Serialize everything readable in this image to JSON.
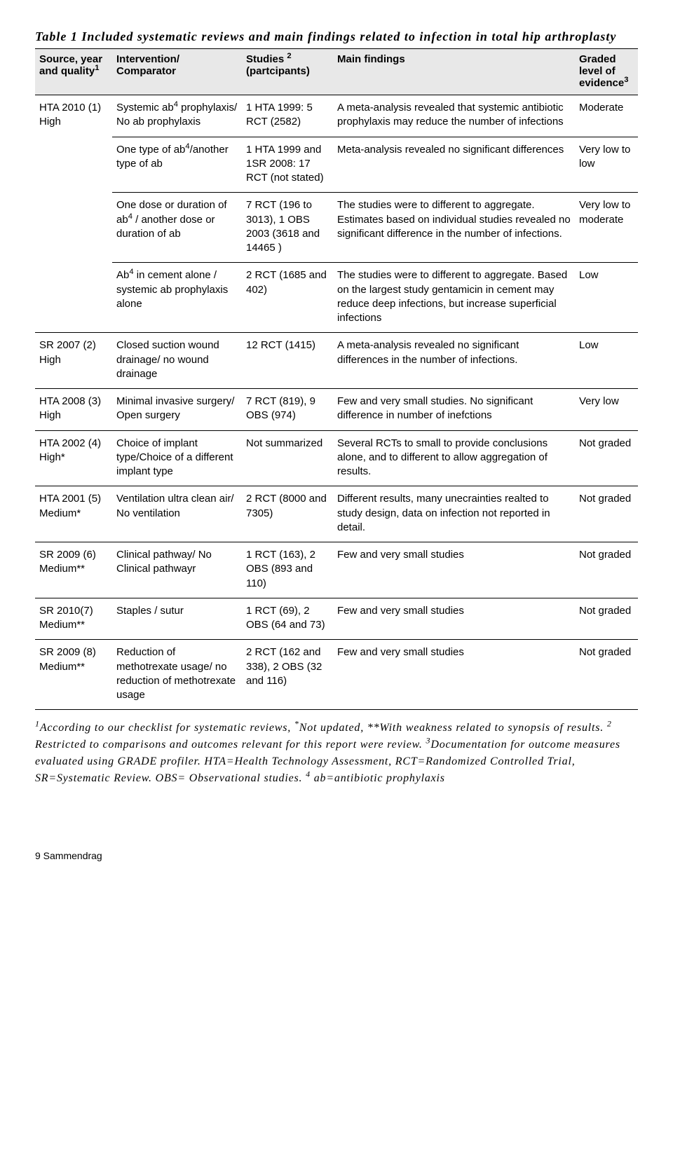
{
  "title": "Table 1 Included systematic reviews and main findings related to infection in total hip arthroplasty",
  "headers": {
    "source": "Source, year and quality",
    "intervention": "Intervention/ Comparator",
    "studies": "Studies",
    "studies_paren": "(partcipants)",
    "findings": "Main findings",
    "grade": "Graded level of evidence"
  },
  "rows": {
    "r1": {
      "source": "HTA 2010 (1) High",
      "intervention_a": "Systemic ab",
      "intervention_b": " prophylaxis/ No ab prophylaxis",
      "studies": "1 HTA 1999: 5 RCT (2582)",
      "findings": "A meta-analysis revealed that systemic antibiotic prophylaxis may reduce the number of infections",
      "grade": "Moderate"
    },
    "r2": {
      "intervention_a": "One type of ab",
      "intervention_b": "/another type of ab",
      "studies": "1 HTA 1999 and 1SR 2008: 17 RCT (not stated)",
      "findings": "Meta-analysis revealed no significant differences",
      "grade": "Very low to low"
    },
    "r3": {
      "intervention_a": "One dose or duration of ab",
      "intervention_b": " / another dose or duration of ab",
      "studies": "7 RCT (196 to 3013), 1 OBS 2003 (3618 and 14465 )",
      "findings": "The studies were to different to aggregate. Estimates based on individual studies revealed no significant difference in the number of infections.",
      "grade": "Very low to moderate"
    },
    "r4": {
      "intervention_a": "Ab",
      "intervention_b": " in cement alone / systemic ab prophylaxis alone",
      "studies": "2 RCT (1685 and 402)",
      "findings": "The studies were to different to aggregate. Based on the largest study gentamicin in cement may reduce deep infections, but increase superficial infections",
      "grade": "Low"
    },
    "r5": {
      "source": "SR 2007 (2) High",
      "intervention": "Closed suction wound drainage/ no wound drainage",
      "studies": "12 RCT (1415)",
      "findings": "A meta-analysis revealed no significant differences in the number of infections.",
      "grade": "Low"
    },
    "r6": {
      "source": "HTA 2008 (3) High",
      "intervention": "Minimal invasive surgery/ Open surgery",
      "studies": "7 RCT (819), 9 OBS  (974)",
      "findings": "Few and very small studies. No significant difference in number of inefctions",
      "grade": "Very low"
    },
    "r7": {
      "source": "HTA 2002 (4) High*",
      "intervention": "Choice of implant type/Choice of a different implant type",
      "studies": "Not summarized",
      "findings": "Several RCTs to small to provide conclusions alone, and to different to allow aggregation of results.",
      "grade": "Not graded"
    },
    "r8": {
      "source": "HTA 2001 (5) Medium*",
      "intervention": "Ventilation ultra clean air/ No ventilation",
      "studies": "2 RCT (8000 and 7305)",
      "findings": "Different results, many unecrainties realted to study design, data on infection not reported in detail.",
      "grade": "Not graded"
    },
    "r9": {
      "source": "SR 2009 (6) Medium**",
      "intervention": "Clinical pathway/ No Clinical pathwayr",
      "studies": "1 RCT (163), 2 OBS (893 and 110)",
      "findings": "Few and very small studies",
      "grade": "Not graded"
    },
    "r10": {
      "source": "SR 2010(7) Medium**",
      "intervention": "Staples / sutur",
      "studies": "1 RCT  (69), 2 OBS  (64 and 73)",
      "findings": "Few and very small studies",
      "grade": "Not graded"
    },
    "r11": {
      "source": "SR 2009 (8) Medium**",
      "intervention": "Reduction of methotrexate  usage/ no reduction of methotrexate usage",
      "studies": "2 RCT  (162 and 338), 2 OBS (32 and 116)",
      "findings": "Few and very small studies",
      "grade": "Not graded"
    }
  },
  "footnote": {
    "l1a": "According to our checklist for systematic reviews, ",
    "l1b": "Not updated, **With weakness related to synopsis of results. ",
    "l2": " Restricted to comparisons and outcomes relevant for this report were review. ",
    "l3": "Documentation for outcome measures evaluated using GRADE profiler. HTA=Health Technology Assessment, RCT=Randomized Controlled Trial, SR=Systematic Review. OBS= Observational studies. ",
    "l4": " ab=antibiotic prophylaxis"
  },
  "pagefoot": "9 Sammendrag"
}
